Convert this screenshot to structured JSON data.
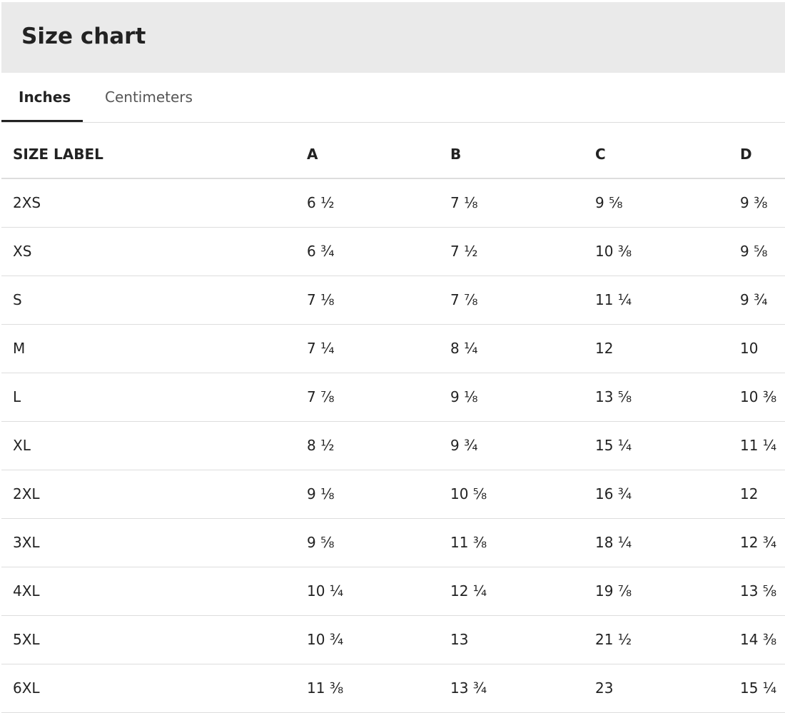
{
  "header": {
    "title": "Size chart"
  },
  "tabs": [
    "Inches",
    "Centimeters"
  ],
  "table": {
    "columns": [
      "SIZE LABEL",
      "A",
      "B",
      "C",
      "D"
    ],
    "rows": [
      [
        "2XS",
        "6 ½",
        "7 ⅛",
        "9 ⅝",
        "9 ⅜"
      ],
      [
        "XS",
        "6 ¾",
        "7 ½",
        "10 ⅜",
        "9 ⅝"
      ],
      [
        "S",
        "7 ⅛",
        "7 ⅞",
        "11 ¼",
        "9 ¾"
      ],
      [
        "M",
        "7 ¼",
        "8 ¼",
        "12",
        "10"
      ],
      [
        "L",
        "7 ⅞",
        "9 ⅛",
        "13 ⅝",
        "10 ⅜"
      ],
      [
        "XL",
        "8 ½",
        "9 ¾",
        "15 ¼",
        "11 ¼"
      ],
      [
        "2XL",
        "9 ⅛",
        "10 ⅝",
        "16 ¾",
        "12"
      ],
      [
        "3XL",
        "9 ⅝",
        "11 ⅜",
        "18 ¼",
        "12 ¾"
      ],
      [
        "4XL",
        "10 ¼",
        "12 ¼",
        "19 ⅞",
        "13 ⅝"
      ],
      [
        "5XL",
        "10 ¾",
        "13",
        "21 ½",
        "14 ⅜"
      ],
      [
        "6XL",
        "11 ⅜",
        "13 ¾",
        "23",
        "15 ¼"
      ]
    ]
  }
}
